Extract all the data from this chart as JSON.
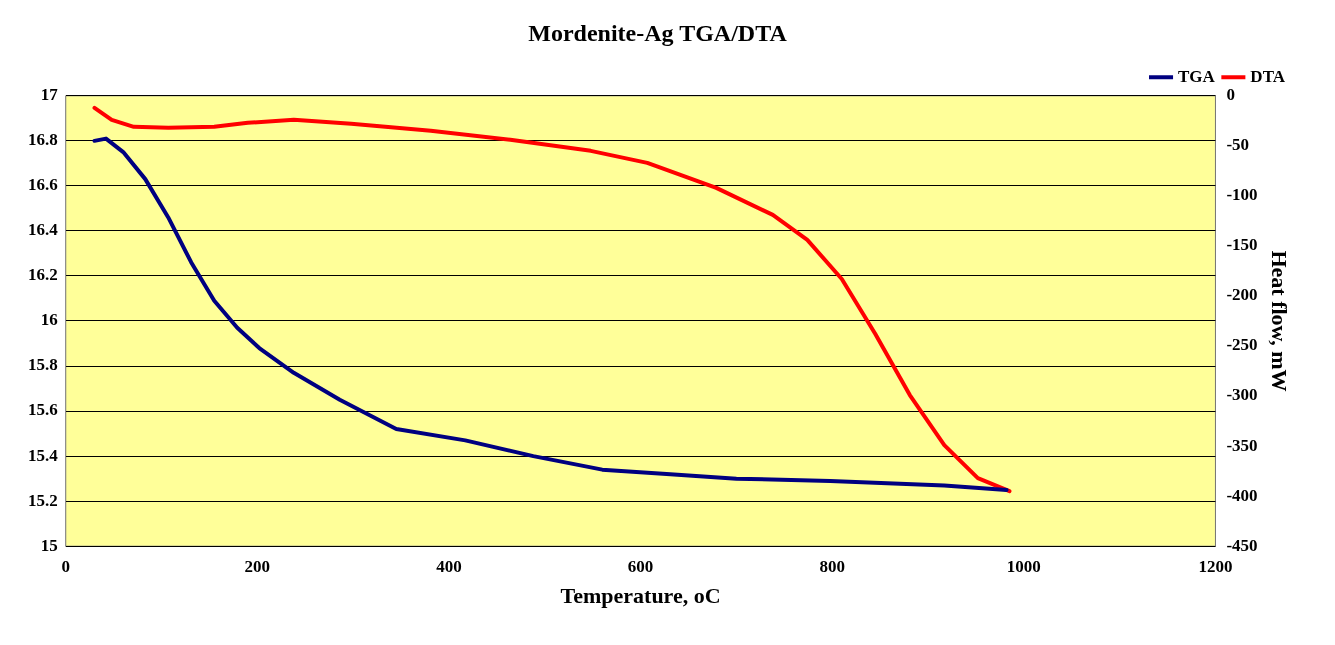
{
  "chart_data": {
    "type": "line",
    "title": "Mordenite-Ag TGA/DTA",
    "xlabel": "Temperature, oC",
    "y2label": "Heat flow, mW",
    "xlim": [
      0,
      1200
    ],
    "xticks": [
      0,
      200,
      400,
      600,
      800,
      1000,
      1200
    ],
    "ylim": [
      15,
      17
    ],
    "yticks": [
      15,
      15.2,
      15.4,
      15.6,
      15.8,
      16,
      16.2,
      16.4,
      16.6,
      16.8,
      17
    ],
    "y2lim": [
      -450,
      0
    ],
    "y2ticks": [
      -450,
      -400,
      -350,
      -300,
      -250,
      -200,
      -150,
      -100,
      -50,
      0
    ],
    "grid": "y",
    "legend": "top right",
    "marker": "none",
    "line_style": "solid",
    "series": [
      {
        "name": "TGA",
        "color": "#000080",
        "x": [
          30,
          42,
          60,
          83,
          107,
          131,
          155,
          179,
          202,
          238,
          286,
          345,
          417,
          488,
          560,
          631,
          700,
          798,
          917,
          982
        ],
        "values": [
          16.8,
          16.81,
          16.75,
          16.63,
          16.46,
          16.26,
          16.09,
          15.97,
          15.88,
          15.77,
          15.65,
          15.52,
          15.47,
          15.4,
          15.34,
          15.32,
          15.3,
          15.29,
          15.27,
          15.25
        ]
      },
      {
        "name": "DTA",
        "color": "#ff0000",
        "axis": "y2",
        "x": [
          30,
          48,
          71,
          107,
          155,
          190,
          238,
          298,
          381,
          464,
          548,
          607,
          679,
          738,
          774,
          810,
          845,
          881,
          917,
          952,
          985
        ],
        "values": [
          -12,
          -24,
          -31,
          -32,
          -31,
          -27,
          -24,
          -28,
          -35,
          -44,
          -55,
          -67,
          -92,
          -119,
          -144,
          -183,
          -238,
          -299,
          -349,
          -382,
          -395
        ]
      }
    ]
  }
}
